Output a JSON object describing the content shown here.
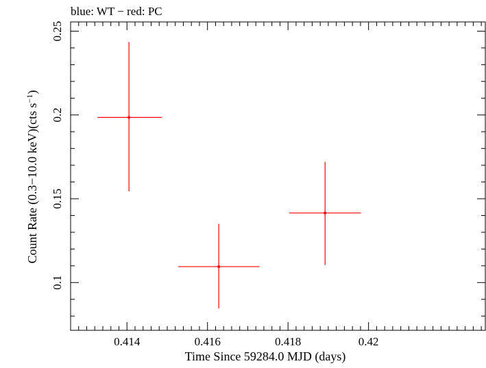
{
  "chart_data": {
    "type": "scatter",
    "title": "blue: WT − red: PC",
    "xlabel": "Time Since 59284.0 MJD (days)",
    "ylabel_main": "Count Rate (0.3−10.0 keV)(cts s",
    "ylabel_sup": "−1",
    "ylabel_close": ")",
    "xlim": [
      0.4126,
      0.4229
    ],
    "ylim": [
      0.0715,
      0.2555
    ],
    "x_ticks": [
      {
        "value": 0.414,
        "label": "0.414"
      },
      {
        "value": 0.416,
        "label": "0.416"
      },
      {
        "value": 0.418,
        "label": "0.418"
      },
      {
        "value": 0.42,
        "label": "0.42"
      }
    ],
    "x_minor_step": 0.0002,
    "y_ticks": [
      {
        "value": 0.1,
        "label": "0.1"
      },
      {
        "value": 0.15,
        "label": "0.15"
      },
      {
        "value": 0.2,
        "label": "0.2"
      },
      {
        "value": 0.25,
        "label": "0.25"
      }
    ],
    "y_minor_step": 0.01,
    "grid": false,
    "series": [
      {
        "name": "PC",
        "color": "#ff0000",
        "points": [
          {
            "x": 0.41405,
            "y": 0.1985,
            "xerr_low": 0.00078,
            "xerr_high": 0.00082,
            "y_low": 0.1545,
            "y_high": 0.2435
          },
          {
            "x": 0.41628,
            "y": 0.1095,
            "xerr_low": 0.00101,
            "xerr_high": 0.00101,
            "y_low": 0.0845,
            "y_high": 0.135
          },
          {
            "x": 0.41892,
            "y": 0.1415,
            "xerr_low": 0.00089,
            "xerr_high": 0.00089,
            "y_low": 0.1105,
            "y_high": 0.172
          }
        ]
      }
    ]
  }
}
